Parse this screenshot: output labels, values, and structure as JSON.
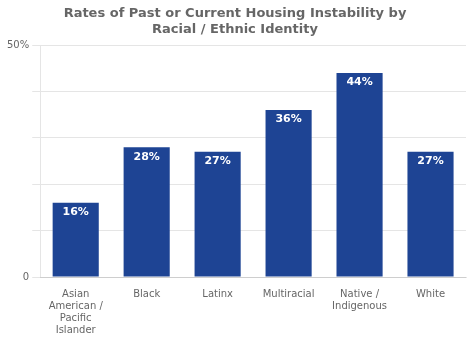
{
  "chart_data": {
    "type": "bar",
    "title": "Rates of Past or Current Housing Instability by\nRacial / Ethnic Identity",
    "categories": [
      "Asian\nAmerican /\nPacific\nIslander",
      "Black",
      "Latinx",
      "Multiracial",
      "Native /\nIndigenous",
      "White"
    ],
    "values": [
      16,
      28,
      27,
      36,
      44,
      27
    ],
    "value_labels": [
      "16%",
      "28%",
      "27%",
      "36%",
      "44%",
      "27%"
    ],
    "data_labels": true,
    "color": "#1e4494",
    "ylim": [
      0,
      50
    ],
    "yticks": [
      0,
      {
        "value": 10,
        "label": null
      },
      {
        "value": 20,
        "label": null
      },
      {
        "value": 30,
        "label": null
      },
      {
        "value": 40,
        "label": null
      },
      {
        "value": 50,
        "label": "50%"
      }
    ],
    "grid": true
  }
}
